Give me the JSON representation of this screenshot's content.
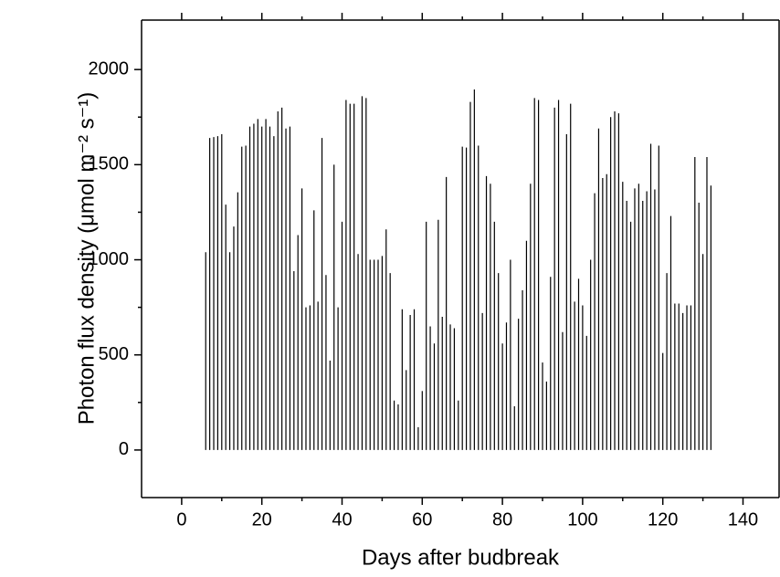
{
  "chart_data": {
    "type": "spike",
    "xlabel": "Days after budbreak",
    "ylabel": "Photon flux density (μmol m⁻² s⁻¹)",
    "xlim": [
      -10,
      149
    ],
    "ylim": [
      -250,
      2260
    ],
    "xticks": [
      0,
      20,
      40,
      60,
      80,
      100,
      120,
      140
    ],
    "yticks": [
      0,
      500,
      1000,
      1500,
      2000
    ],
    "color": "#000000",
    "x": [
      6,
      7,
      8,
      9,
      10,
      11,
      12,
      13,
      14,
      15,
      16,
      17,
      18,
      19,
      20,
      21,
      22,
      23,
      24,
      25,
      26,
      27,
      28,
      29,
      30,
      31,
      32,
      33,
      34,
      35,
      36,
      37,
      38,
      39,
      40,
      41,
      42,
      43,
      44,
      45,
      46,
      47,
      48,
      49,
      50,
      51,
      52,
      53,
      54,
      55,
      56,
      57,
      58,
      59,
      60,
      61,
      62,
      63,
      64,
      65,
      66,
      67,
      68,
      69,
      70,
      71,
      72,
      73,
      74,
      75,
      76,
      77,
      78,
      79,
      80,
      81,
      82,
      83,
      84,
      85,
      86,
      87,
      88,
      89,
      90,
      91,
      92,
      93,
      94,
      95,
      96,
      97,
      98,
      99,
      100,
      101,
      102,
      103,
      104,
      105,
      106,
      107,
      108,
      109,
      110,
      111,
      112,
      113,
      114,
      115,
      116,
      117,
      118,
      119,
      120,
      121,
      122,
      123,
      124,
      125,
      126,
      127,
      128,
      129,
      130,
      131,
      132
    ],
    "values": [
      1040,
      1640,
      1645,
      1650,
      1660,
      1290,
      1040,
      1175,
      1355,
      1595,
      1600,
      1700,
      1715,
      1740,
      1700,
      1740,
      1700,
      1650,
      1780,
      1800,
      1690,
      1700,
      940,
      1130,
      1375,
      750,
      760,
      1260,
      780,
      1640,
      920,
      470,
      1500,
      750,
      1200,
      1840,
      1820,
      1820,
      1030,
      1860,
      1850,
      1000,
      1000,
      1000,
      1020,
      1160,
      930,
      260,
      240,
      740,
      420,
      710,
      740,
      120,
      310,
      1200,
      650,
      560,
      1210,
      700,
      1435,
      660,
      640,
      260,
      1595,
      1590,
      1830,
      1895,
      1600,
      720,
      1440,
      1400,
      1200,
      930,
      560,
      670,
      1000,
      230,
      690,
      840,
      1100,
      1400,
      1850,
      1840,
      460,
      360,
      910,
      1800,
      1840,
      620,
      1660,
      1820,
      780,
      900,
      760,
      600,
      1000,
      1350,
      1690,
      1430,
      1450,
      1750,
      1780,
      1770,
      1410,
      1310,
      1200,
      1375,
      1400,
      1310,
      1360,
      1610,
      1370,
      1600,
      510,
      930,
      1230,
      770,
      770,
      720,
      760,
      760,
      1540,
      1300,
      1030,
      1540,
      1390
    ]
  }
}
